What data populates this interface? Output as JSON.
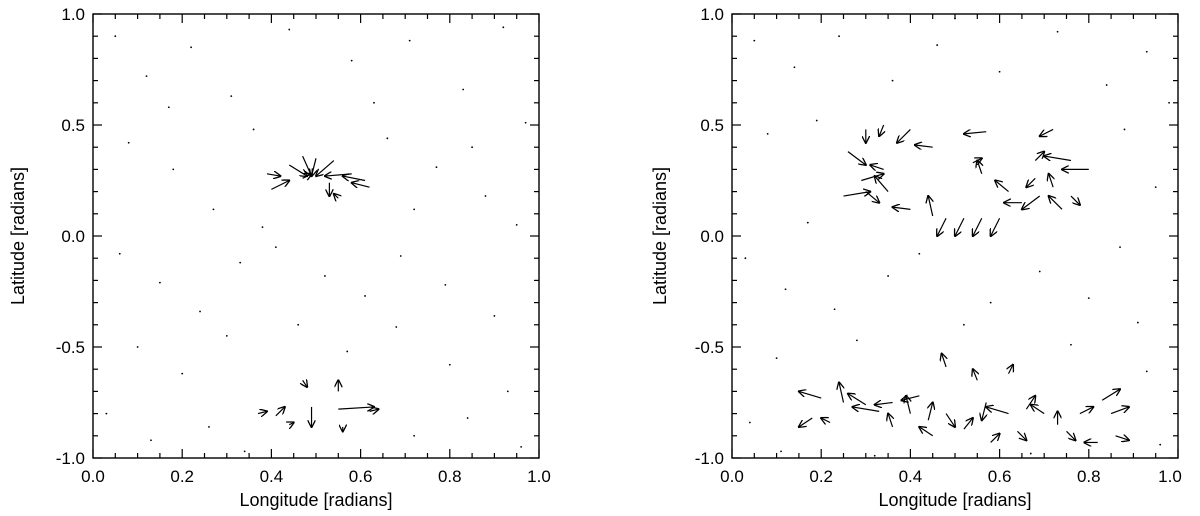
{
  "chart_data": [
    {
      "type": "quiver",
      "xlabel": "Longitude [radians]",
      "ylabel": "Latitude [radians]",
      "xlim": [
        0.0,
        1.0
      ],
      "ylim": [
        -1.0,
        1.0
      ],
      "x_ticks": [
        "0.0",
        "0.2",
        "0.4",
        "0.6",
        "0.8",
        "1.0"
      ],
      "y_ticks": [
        "-1.0",
        "-0.5",
        "0.0",
        "0.5",
        "1.0"
      ],
      "grid": false,
      "arrows": [
        [
          0.39,
          0.28,
          0.42,
          0.27
        ],
        [
          0.4,
          0.21,
          0.44,
          0.25
        ],
        [
          0.44,
          0.32,
          0.48,
          0.27
        ],
        [
          0.47,
          0.36,
          0.49,
          0.27
        ],
        [
          0.5,
          0.35,
          0.49,
          0.27
        ],
        [
          0.54,
          0.34,
          0.5,
          0.27
        ],
        [
          0.58,
          0.28,
          0.52,
          0.27
        ],
        [
          0.61,
          0.25,
          0.56,
          0.27
        ],
        [
          0.62,
          0.22,
          0.58,
          0.24
        ],
        [
          0.53,
          0.24,
          0.53,
          0.18
        ],
        [
          0.55,
          0.17,
          0.54,
          0.19
        ],
        [
          0.47,
          0.26,
          0.49,
          0.28
        ],
        [
          0.37,
          -0.8,
          0.39,
          -0.79
        ],
        [
          0.41,
          -0.81,
          0.43,
          -0.77
        ],
        [
          0.49,
          -0.77,
          0.49,
          -0.86
        ],
        [
          0.55,
          -0.78,
          0.63,
          -0.77
        ],
        [
          0.44,
          -0.85,
          0.45,
          -0.84
        ],
        [
          0.55,
          -0.7,
          0.55,
          -0.65
        ],
        [
          0.47,
          -0.65,
          0.48,
          -0.68
        ],
        [
          0.56,
          -0.86,
          0.56,
          -0.88
        ],
        [
          0.62,
          -0.79,
          0.64,
          -0.78
        ]
      ],
      "dots": [
        [
          0.05,
          0.9
        ],
        [
          0.12,
          0.72
        ],
        [
          0.22,
          0.85
        ],
        [
          0.31,
          0.63
        ],
        [
          0.44,
          0.93
        ],
        [
          0.58,
          0.79
        ],
        [
          0.71,
          0.88
        ],
        [
          0.83,
          0.66
        ],
        [
          0.92,
          0.94
        ],
        [
          0.97,
          0.51
        ],
        [
          0.08,
          0.42
        ],
        [
          0.18,
          0.3
        ],
        [
          0.27,
          0.12
        ],
        [
          0.36,
          0.48
        ],
        [
          0.66,
          0.44
        ],
        [
          0.77,
          0.31
        ],
        [
          0.88,
          0.18
        ],
        [
          0.95,
          0.05
        ],
        [
          0.06,
          -0.08
        ],
        [
          0.15,
          -0.21
        ],
        [
          0.24,
          -0.34
        ],
        [
          0.33,
          -0.12
        ],
        [
          0.41,
          -0.05
        ],
        [
          0.52,
          -0.18
        ],
        [
          0.61,
          -0.27
        ],
        [
          0.69,
          -0.09
        ],
        [
          0.79,
          -0.22
        ],
        [
          0.9,
          -0.36
        ],
        [
          0.1,
          -0.5
        ],
        [
          0.2,
          -0.62
        ],
        [
          0.3,
          -0.45
        ],
        [
          0.46,
          -0.4
        ],
        [
          0.57,
          -0.52
        ],
        [
          0.68,
          -0.41
        ],
        [
          0.8,
          -0.58
        ],
        [
          0.93,
          -0.7
        ],
        [
          0.03,
          -0.8
        ],
        [
          0.13,
          -0.92
        ],
        [
          0.26,
          -0.86
        ],
        [
          0.34,
          -0.97
        ],
        [
          0.72,
          -0.9
        ],
        [
          0.84,
          -0.82
        ],
        [
          0.96,
          -0.95
        ],
        [
          0.17,
          0.58
        ],
        [
          0.63,
          0.6
        ],
        [
          0.85,
          0.4
        ],
        [
          0.72,
          0.12
        ],
        [
          0.38,
          0.04
        ]
      ]
    },
    {
      "type": "quiver",
      "xlabel": "Longitude [radians]",
      "ylabel": "Latitude [radians]",
      "xlim": [
        0.0,
        1.0
      ],
      "ylim": [
        -1.0,
        1.0
      ],
      "x_ticks": [
        "0.0",
        "0.2",
        "0.4",
        "0.6",
        "0.8",
        "1.0"
      ],
      "y_ticks": [
        "-1.0",
        "-0.5",
        "0.0",
        "0.5",
        "1.0"
      ],
      "grid": false,
      "arrows": [
        [
          0.3,
          0.48,
          0.3,
          0.42
        ],
        [
          0.34,
          0.5,
          0.33,
          0.45
        ],
        [
          0.4,
          0.48,
          0.37,
          0.42
        ],
        [
          0.45,
          0.4,
          0.41,
          0.41
        ],
        [
          0.57,
          0.47,
          0.52,
          0.46
        ],
        [
          0.72,
          0.48,
          0.69,
          0.45
        ],
        [
          0.26,
          0.38,
          0.3,
          0.32
        ],
        [
          0.34,
          0.3,
          0.31,
          0.32
        ],
        [
          0.35,
          0.2,
          0.32,
          0.27
        ],
        [
          0.3,
          0.2,
          0.33,
          0.15
        ],
        [
          0.25,
          0.18,
          0.31,
          0.2
        ],
        [
          0.29,
          0.25,
          0.34,
          0.28
        ],
        [
          0.4,
          0.12,
          0.36,
          0.13
        ],
        [
          0.45,
          0.09,
          0.44,
          0.18
        ],
        [
          0.48,
          0.08,
          0.46,
          0.0
        ],
        [
          0.52,
          0.08,
          0.5,
          0.0
        ],
        [
          0.56,
          0.08,
          0.54,
          0.0
        ],
        [
          0.6,
          0.08,
          0.58,
          0.0
        ],
        [
          0.62,
          0.2,
          0.59,
          0.25
        ],
        [
          0.65,
          0.15,
          0.61,
          0.15
        ],
        [
          0.69,
          0.18,
          0.65,
          0.12
        ],
        [
          0.68,
          0.34,
          0.7,
          0.38
        ],
        [
          0.76,
          0.34,
          0.7,
          0.36
        ],
        [
          0.8,
          0.3,
          0.74,
          0.3
        ],
        [
          0.74,
          0.12,
          0.71,
          0.18
        ],
        [
          0.72,
          0.22,
          0.71,
          0.28
        ],
        [
          0.68,
          0.26,
          0.66,
          0.22
        ],
        [
          0.56,
          0.28,
          0.55,
          0.34
        ],
        [
          0.54,
          0.33,
          0.56,
          0.35
        ],
        [
          0.76,
          0.18,
          0.78,
          0.14
        ],
        [
          0.2,
          -0.73,
          0.15,
          -0.7
        ],
        [
          0.25,
          -0.75,
          0.24,
          -0.66
        ],
        [
          0.3,
          -0.76,
          0.26,
          -0.71
        ],
        [
          0.33,
          -0.79,
          0.27,
          -0.77
        ],
        [
          0.36,
          -0.75,
          0.32,
          -0.76
        ],
        [
          0.4,
          -0.8,
          0.39,
          -0.72
        ],
        [
          0.42,
          -0.72,
          0.38,
          -0.74
        ],
        [
          0.44,
          -0.83,
          0.45,
          -0.75
        ],
        [
          0.48,
          -0.8,
          0.5,
          -0.86
        ],
        [
          0.52,
          -0.87,
          0.54,
          -0.82
        ],
        [
          0.57,
          -0.75,
          0.56,
          -0.83
        ],
        [
          0.62,
          -0.8,
          0.57,
          -0.77
        ],
        [
          0.66,
          -0.78,
          0.68,
          -0.72
        ],
        [
          0.7,
          -0.8,
          0.67,
          -0.76
        ],
        [
          0.73,
          -0.85,
          0.73,
          -0.79
        ],
        [
          0.78,
          -0.8,
          0.81,
          -0.77
        ],
        [
          0.83,
          -0.74,
          0.87,
          -0.69
        ],
        [
          0.85,
          -0.8,
          0.89,
          -0.77
        ],
        [
          0.86,
          -0.9,
          0.89,
          -0.92
        ],
        [
          0.82,
          -0.93,
          0.79,
          -0.93
        ],
        [
          0.55,
          -0.65,
          0.54,
          -0.6
        ],
        [
          0.48,
          -0.59,
          0.47,
          -0.53
        ],
        [
          0.62,
          -0.62,
          0.63,
          -0.58
        ],
        [
          0.45,
          -0.9,
          0.42,
          -0.86
        ],
        [
          0.58,
          -0.93,
          0.6,
          -0.89
        ],
        [
          0.64,
          -0.88,
          0.66,
          -0.92
        ],
        [
          0.75,
          -0.88,
          0.77,
          -0.92
        ],
        [
          0.22,
          -0.84,
          0.2,
          -0.82
        ],
        [
          0.18,
          -0.82,
          0.15,
          -0.86
        ],
        [
          0.36,
          -0.86,
          0.35,
          -0.8
        ]
      ],
      "dots": [
        [
          0.05,
          0.88
        ],
        [
          0.14,
          0.76
        ],
        [
          0.24,
          0.9
        ],
        [
          0.36,
          0.7
        ],
        [
          0.46,
          0.86
        ],
        [
          0.6,
          0.74
        ],
        [
          0.73,
          0.92
        ],
        [
          0.84,
          0.68
        ],
        [
          0.93,
          0.83
        ],
        [
          0.98,
          0.6
        ],
        [
          0.08,
          0.46
        ],
        [
          0.17,
          0.06
        ],
        [
          0.88,
          0.48
        ],
        [
          0.95,
          0.22
        ],
        [
          0.03,
          -0.1
        ],
        [
          0.12,
          -0.24
        ],
        [
          0.23,
          -0.33
        ],
        [
          0.35,
          -0.18
        ],
        [
          0.58,
          -0.3
        ],
        [
          0.69,
          -0.16
        ],
        [
          0.8,
          -0.28
        ],
        [
          0.91,
          -0.39
        ],
        [
          0.1,
          -0.55
        ],
        [
          0.28,
          -0.47
        ],
        [
          0.76,
          -0.49
        ],
        [
          0.93,
          -0.61
        ],
        [
          0.04,
          -0.84
        ],
        [
          0.11,
          -0.97
        ],
        [
          0.32,
          -0.99
        ],
        [
          0.67,
          -0.98
        ],
        [
          0.96,
          -0.94
        ],
        [
          0.5,
          0.98
        ],
        [
          0.42,
          -0.08
        ],
        [
          0.87,
          -0.05
        ],
        [
          0.19,
          0.52
        ],
        [
          0.52,
          -0.4
        ]
      ]
    }
  ]
}
